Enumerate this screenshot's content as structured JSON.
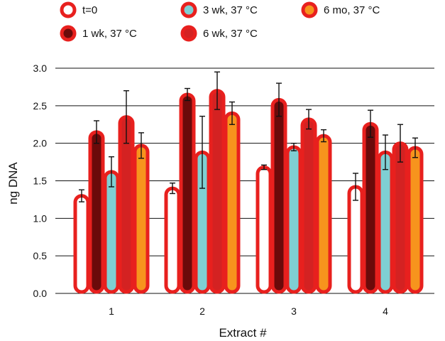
{
  "chart_data": {
    "type": "bar",
    "xlabel": "Extract #",
    "ylabel": "ng DNA",
    "ylim": [
      0,
      3
    ],
    "yticks": [
      "0.0",
      "0.5",
      "1.0",
      "1.5",
      "2.0",
      "2.5",
      "3.0"
    ],
    "grid": "horizontal",
    "legend_position": "top",
    "categories": [
      "1",
      "2",
      "3",
      "4"
    ],
    "series": [
      {
        "name": "t=0",
        "values": [
          1.3,
          1.4,
          1.68,
          1.42
        ],
        "errors": [
          0.08,
          0.07,
          0.03,
          0.18
        ],
        "fill": "#ffffff",
        "outline": "#e8201e"
      },
      {
        "name": "1 wk, 37 °C",
        "values": [
          2.15,
          2.65,
          2.58,
          2.26
        ],
        "errors": [
          0.15,
          0.08,
          0.22,
          0.18
        ],
        "fill": "#6b0a0a",
        "outline": "#e8201e"
      },
      {
        "name": "3 wk, 37 °C",
        "values": [
          1.62,
          1.88,
          1.95,
          1.88
        ],
        "errors": [
          0.2,
          0.48,
          0.05,
          0.23
        ],
        "fill": "#7fcfd3",
        "outline": "#e8201e"
      },
      {
        "name": "6 wk, 37 °C",
        "values": [
          2.35,
          2.7,
          2.32,
          2.0
        ],
        "errors": [
          0.35,
          0.25,
          0.13,
          0.25
        ],
        "fill": "#d42222",
        "outline": "#e8201e"
      },
      {
        "name": "6 mo, 37 °C",
        "values": [
          1.97,
          2.4,
          2.1,
          1.94
        ],
        "errors": [
          0.17,
          0.15,
          0.08,
          0.13
        ],
        "fill": "#f7941d",
        "outline": "#e8201e"
      }
    ]
  }
}
